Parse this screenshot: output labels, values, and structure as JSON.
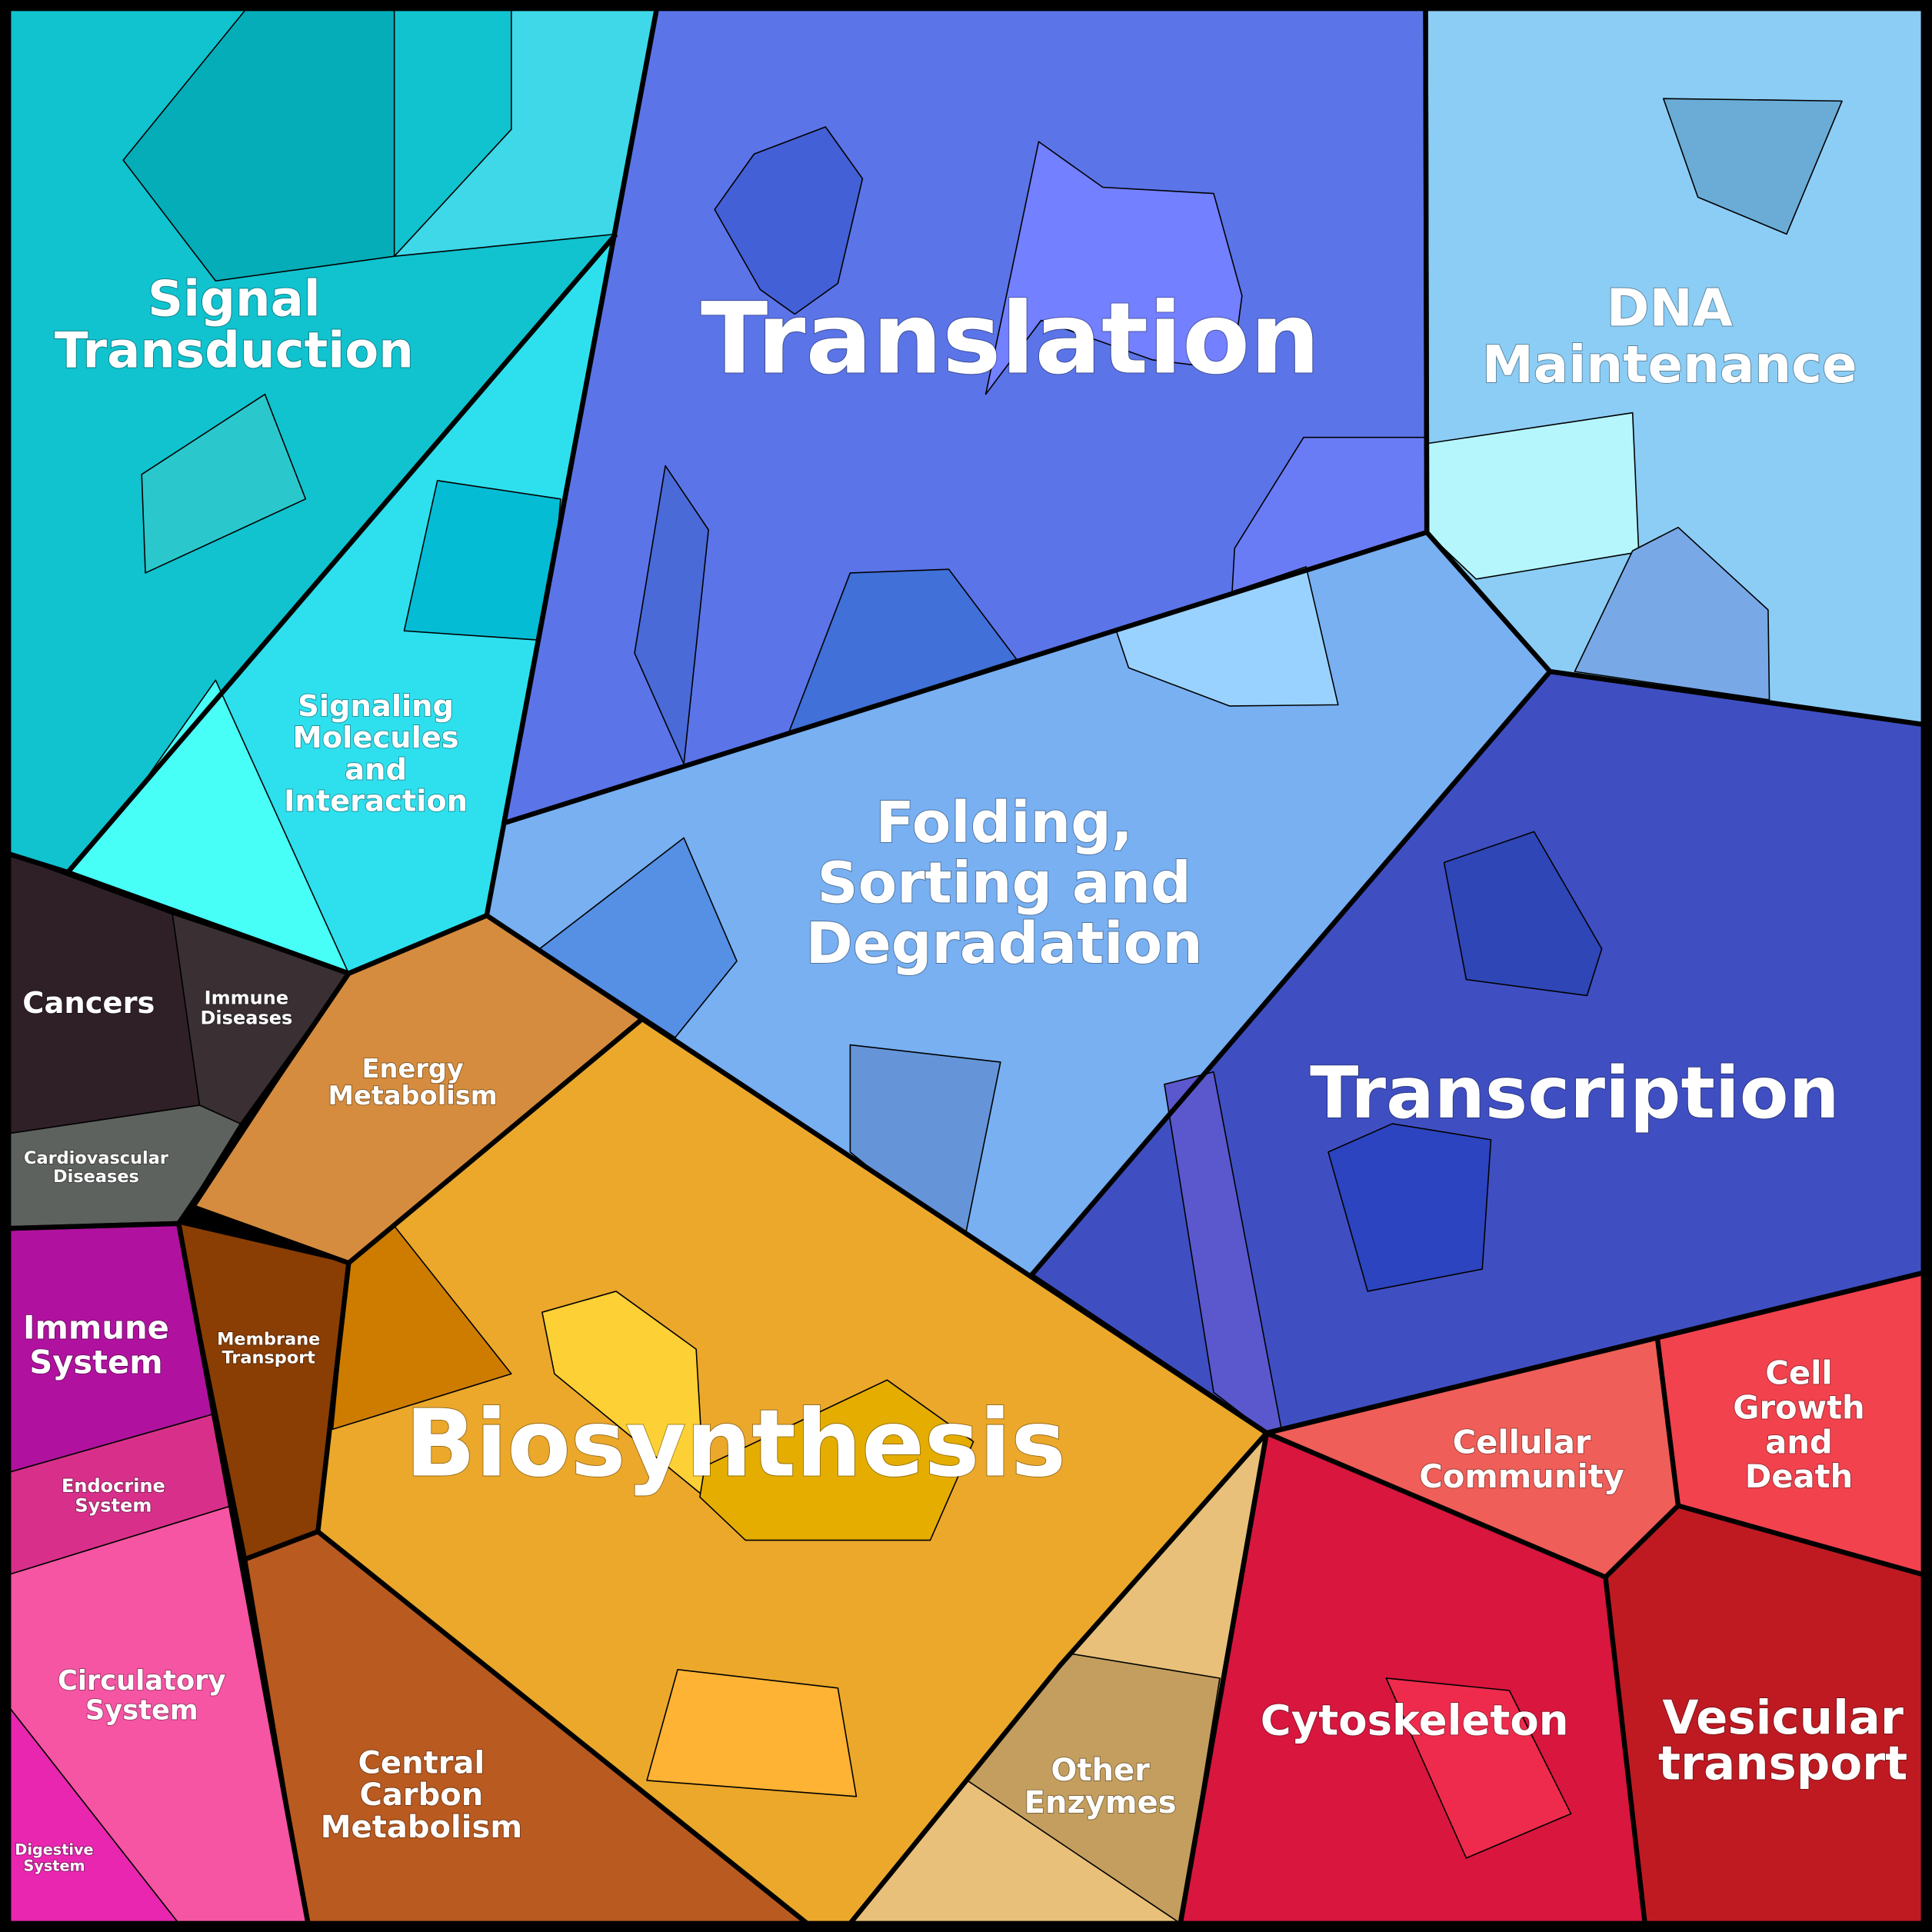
{
  "regions": [
    {
      "lines": [
        "Signal",
        "Transduction"
      ]
    },
    {
      "lines": [
        "Signaling",
        "Molecules",
        "and",
        "Interaction"
      ]
    },
    {
      "lines": [
        "Translation"
      ]
    },
    {
      "lines": [
        "DNA",
        "Maintenance"
      ]
    },
    {
      "lines": [
        "Folding,",
        "Sorting and",
        "Degradation"
      ]
    },
    {
      "lines": [
        "Transcription"
      ]
    },
    {
      "lines": [
        "Cancers"
      ]
    },
    {
      "lines": [
        "Immune",
        "Diseases"
      ]
    },
    {
      "lines": [
        "Cardiovascular",
        "Diseases"
      ]
    },
    {
      "lines": [
        "Energy",
        "Metabolism"
      ]
    },
    {
      "lines": [
        "Membrane",
        "Transport"
      ]
    },
    {
      "lines": [
        "Immune",
        "System"
      ]
    },
    {
      "lines": [
        "Endocrine",
        "System"
      ]
    },
    {
      "lines": [
        "Circulatory",
        "System"
      ]
    },
    {
      "lines": [
        "Digestive",
        "System"
      ]
    },
    {
      "lines": [
        "Biosynthesis"
      ]
    },
    {
      "lines": [
        "Central",
        "Carbon",
        "Metabolism"
      ]
    },
    {
      "lines": [
        "Other",
        "Enzymes"
      ]
    },
    {
      "lines": [
        "Cellular",
        "Community"
      ]
    },
    {
      "lines": [
        "Cell",
        "Growth",
        "and",
        "Death"
      ]
    },
    {
      "lines": [
        "Cytoskeleton"
      ]
    },
    {
      "lines": [
        "Vesicular",
        "transport"
      ]
    }
  ]
}
